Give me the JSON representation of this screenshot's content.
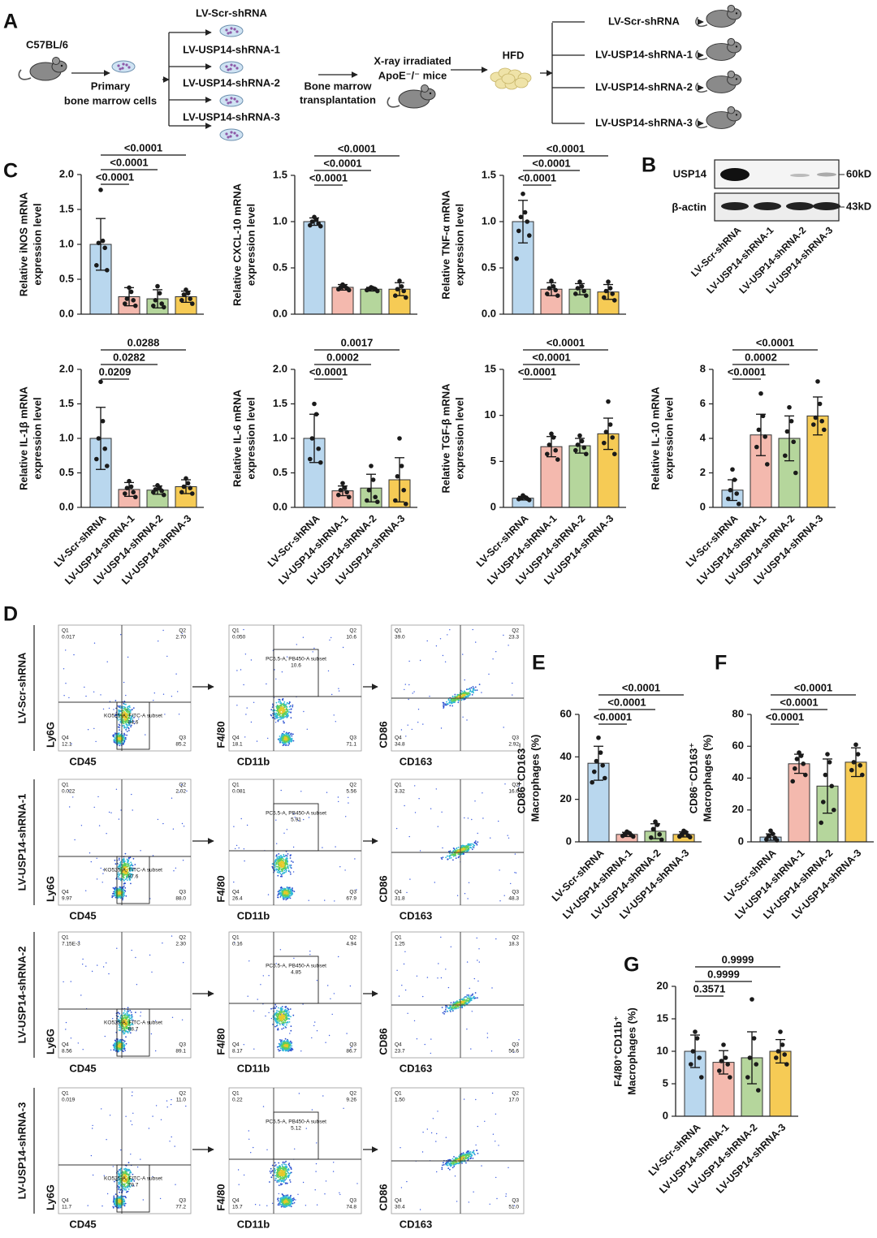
{
  "panel_labels": [
    "A",
    "B",
    "C",
    "D",
    "E",
    "F",
    "G"
  ],
  "schematic": {
    "strain": "C57BL/6",
    "cells": [
      "Primary",
      "bone marrow cells"
    ],
    "vectors": [
      "LV-Scr-shRNA",
      "LV-USP14-shRNA-1",
      "LV-USP14-shRNA-2",
      "LV-USP14-shRNA-3"
    ],
    "transplant": [
      "Bone marrow",
      "transplantation"
    ],
    "recipient": [
      "X-ray irradiated",
      "ApoE⁻/⁻ mice"
    ],
    "diet": "HFD",
    "groups": [
      "LV-Scr-shRNA",
      "LV-USP14-shRNA-1",
      "LV-USP14-shRNA-2",
      "LV-USP14-shRNA-3"
    ]
  },
  "blot": {
    "rows": [
      "USP14",
      "β-actin"
    ],
    "sizes": [
      "60kD",
      "43kD"
    ],
    "lanes": [
      "LV-Scr-shRNA",
      "LV-USP14-shRNA-1",
      "LV-USP14-shRNA-2",
      "LV-USP14-shRNA-3"
    ]
  },
  "flow": {
    "rows": [
      {
        "label": "LV-Scr-shRNA",
        "plots": [
          {
            "ylabel": "Ly6G",
            "xlabel": "CD45",
            "quadrants": [
              [
                "Q1",
                "0.017"
              ],
              [
                "Q2",
                "2.70"
              ],
              [
                "Q4",
                "12.1"
              ],
              [
                "Q3",
                "85.2"
              ]
            ],
            "gate": [
              "KO525-A, FITC-A subset",
              "84.6"
            ]
          },
          {
            "ylabel": "F4/80",
            "xlabel": "CD11b",
            "quadrants": [
              [
                "Q1",
                "0.050"
              ],
              [
                "Q2",
                "10.6"
              ],
              [
                "Q4",
                "18.1"
              ],
              [
                "Q3",
                "71.1"
              ]
            ],
            "gate": [
              "PC5.5-A, PB450-A subset",
              "10.6"
            ]
          },
          {
            "ylabel": "CD86",
            "xlabel": "CD163",
            "quadrants": [
              [
                "Q1",
                "39.0"
              ],
              [
                "Q2",
                "23.3"
              ],
              [
                "Q4",
                "34.8"
              ],
              [
                "Q3",
                "2.92"
              ]
            ]
          }
        ]
      },
      {
        "label": "LV-USP14-shRNA-1",
        "plots": [
          {
            "ylabel": "Ly6G",
            "xlabel": "CD45",
            "quadrants": [
              [
                "Q1",
                "0.022"
              ],
              [
                "Q2",
                "2.02"
              ],
              [
                "Q4",
                "9.97"
              ],
              [
                "Q3",
                "88.0"
              ]
            ],
            "gate": [
              "KO525-A, FITC-A subset",
              "87.6"
            ]
          },
          {
            "ylabel": "F4/80",
            "xlabel": "CD11b",
            "quadrants": [
              [
                "Q1",
                "0.081"
              ],
              [
                "Q2",
                "5.56"
              ],
              [
                "Q4",
                "26.4"
              ],
              [
                "Q3",
                "67.9"
              ]
            ],
            "gate": [
              "PC5.5-A, PB450-A subset",
              "5.91"
            ]
          },
          {
            "ylabel": "CD86",
            "xlabel": "CD163",
            "quadrants": [
              [
                "Q1",
                "3.32"
              ],
              [
                "Q2",
                "16.6"
              ],
              [
                "Q4",
                "31.8"
              ],
              [
                "Q3",
                "48.3"
              ]
            ]
          }
        ]
      },
      {
        "label": "LV-USP14-shRNA-2",
        "plots": [
          {
            "ylabel": "Ly6G",
            "xlabel": "CD45",
            "quadrants": [
              [
                "Q1",
                "7.15E-3"
              ],
              [
                "Q2",
                "2.30"
              ],
              [
                "Q4",
                "8.56"
              ],
              [
                "Q3",
                "89.1"
              ]
            ],
            "gate": [
              "KO525-A, FITC-A subset",
              "88.7"
            ]
          },
          {
            "ylabel": "F4/80",
            "xlabel": "CD11b",
            "quadrants": [
              [
                "Q1",
                "0.16"
              ],
              [
                "Q2",
                "4.94"
              ],
              [
                "Q4",
                "8.17"
              ],
              [
                "Q3",
                "86.7"
              ]
            ],
            "gate": [
              "PC5.5-A, PB450-A subset",
              "4.85"
            ]
          },
          {
            "ylabel": "CD86",
            "xlabel": "CD163",
            "quadrants": [
              [
                "Q1",
                "1.25"
              ],
              [
                "Q2",
                "18.3"
              ],
              [
                "Q4",
                "23.7"
              ],
              [
                "Q3",
                "56.6"
              ]
            ]
          }
        ]
      },
      {
        "label": "LV-USP14-shRNA-3",
        "plots": [
          {
            "ylabel": "Ly6G",
            "xlabel": "CD45",
            "quadrants": [
              [
                "Q1",
                "0.019"
              ],
              [
                "Q2",
                "11.0"
              ],
              [
                "Q4",
                "11.7"
              ],
              [
                "Q3",
                "77.2"
              ]
            ],
            "gate": [
              "KO525-A, FITC-A subset",
              "79.7"
            ]
          },
          {
            "ylabel": "F4/80",
            "xlabel": "CD11b",
            "quadrants": [
              [
                "Q1",
                "0.22"
              ],
              [
                "Q2",
                "9.26"
              ],
              [
                "Q4",
                "15.7"
              ],
              [
                "Q3",
                "74.8"
              ]
            ],
            "gate": [
              "PC5.5-A, PB450-A subset",
              "5.12"
            ]
          },
          {
            "ylabel": "CD86",
            "xlabel": "CD163",
            "quadrants": [
              [
                "Q1",
                "1.50"
              ],
              [
                "Q2",
                "17.0"
              ],
              [
                "Q4",
                "30.4"
              ],
              [
                "Q3",
                "51.0"
              ]
            ]
          }
        ]
      }
    ]
  },
  "chart_data": [
    {
      "type": "bar",
      "ylabel": [
        "Relative iNOS mRNA",
        "expression level"
      ],
      "categories": [
        null,
        null,
        null,
        null
      ],
      "values": [
        1.0,
        0.25,
        0.22,
        0.25
      ],
      "error": [
        0.37,
        0.13,
        0.13,
        0.08
      ],
      "points": [
        [
          1.78,
          1.05,
          1.02,
          0.95,
          0.7,
          0.63
        ],
        [
          0.38,
          0.32,
          0.22,
          0.2,
          0.15,
          0.12
        ],
        [
          0.4,
          0.3,
          0.2,
          0.15,
          0.12,
          0.1
        ],
        [
          0.35,
          0.3,
          0.28,
          0.22,
          0.2,
          0.15
        ]
      ],
      "colors": [
        "#b9d7ee",
        "#f4b9ae",
        "#b5d69c",
        "#f6cb55"
      ],
      "ylim": [
        0,
        2
      ],
      "yticks": [
        {
          "value": 0,
          "label": "0.0"
        },
        0.5,
        {
          "value": 1,
          "label": "1.0"
        },
        1.5,
        {
          "value": 2,
          "label": "2.0"
        }
      ],
      "comparisons": [
        "<0.0001",
        "<0.0001",
        "<0.0001"
      ]
    },
    {
      "type": "bar",
      "ylabel": [
        "Relative CXCL-10 mRNA",
        "expression level"
      ],
      "categories": [
        null,
        null,
        null,
        null
      ],
      "values": [
        1.0,
        0.29,
        0.27,
        0.27
      ],
      "error": [
        0.04,
        0.03,
        0.02,
        0.07
      ],
      "points": [
        [
          1.05,
          1.02,
          1.0,
          0.98,
          0.96,
          0.95
        ],
        [
          0.32,
          0.3,
          0.29,
          0.28,
          0.27,
          0.26
        ],
        [
          0.29,
          0.28,
          0.27,
          0.27,
          0.26,
          0.25
        ],
        [
          0.36,
          0.3,
          0.27,
          0.25,
          0.2,
          0.18
        ]
      ],
      "colors": [
        "#b9d7ee",
        "#f4b9ae",
        "#b5d69c",
        "#f6cb55"
      ],
      "ylim": [
        0,
        1.5
      ],
      "yticks": [
        {
          "value": 0,
          "label": "0.0"
        },
        0.5,
        {
          "value": 1,
          "label": "1.0"
        },
        1.5
      ],
      "comparisons": [
        "<0.0001",
        "<0.0001",
        "<0.0001"
      ]
    },
    {
      "type": "bar",
      "ylabel": [
        "Relative TNF-α mRNA",
        "expression level"
      ],
      "categories": [
        null,
        null,
        null,
        null
      ],
      "values": [
        1.0,
        0.27,
        0.27,
        0.24
      ],
      "error": [
        0.23,
        0.07,
        0.06,
        0.08
      ],
      "points": [
        [
          1.3,
          1.1,
          1.05,
          1.0,
          0.9,
          0.85,
          0.6
        ],
        [
          0.36,
          0.3,
          0.28,
          0.26,
          0.22,
          0.2
        ],
        [
          0.35,
          0.3,
          0.28,
          0.25,
          0.22,
          0.2
        ],
        [
          0.35,
          0.28,
          0.25,
          0.22,
          0.18,
          0.15
        ]
      ],
      "colors": [
        "#b9d7ee",
        "#f4b9ae",
        "#b5d69c",
        "#f6cb55"
      ],
      "ylim": [
        0,
        1.5
      ],
      "yticks": [
        {
          "value": 0,
          "label": "0.0"
        },
        0.5,
        {
          "value": 1,
          "label": "1.0"
        },
        1.5
      ],
      "comparisons": [
        "<0.0001",
        "<0.0001",
        "<0.0001"
      ]
    },
    {
      "type": "bar",
      "ylabel": [
        "Relative IL-1β mRNA",
        "expression level"
      ],
      "categories": [
        "LV-Scr-shRNA",
        "LV-USP14-shRNA-1",
        "LV-USP14-shRNA-2",
        "LV-USP14-shRNA-3"
      ],
      "values": [
        1.0,
        0.26,
        0.25,
        0.3
      ],
      "error": [
        0.45,
        0.1,
        0.06,
        0.1
      ],
      "points": [
        [
          1.82,
          1.25,
          1.0,
          0.85,
          0.7,
          0.6
        ],
        [
          0.38,
          0.3,
          0.28,
          0.22,
          0.2,
          0.15
        ],
        [
          0.32,
          0.28,
          0.26,
          0.24,
          0.22,
          0.18
        ],
        [
          0.42,
          0.35,
          0.3,
          0.28,
          0.22,
          0.2
        ]
      ],
      "colors": [
        "#b9d7ee",
        "#f4b9ae",
        "#b5d69c",
        "#f6cb55"
      ],
      "ylim": [
        0,
        2
      ],
      "yticks": [
        {
          "value": 0,
          "label": "0.0"
        },
        0.5,
        {
          "value": 1,
          "label": "1.0"
        },
        1.5,
        {
          "value": 2,
          "label": "2.0"
        }
      ],
      "comparisons": [
        "0.0209",
        "0.0282",
        "0.0288"
      ]
    },
    {
      "type": "bar",
      "ylabel": [
        "Relative IL-6 mRNA",
        "expression level"
      ],
      "categories": [
        "LV-Scr-shRNA",
        "LV-USP14-shRNA-1",
        "LV-USP14-shRNA-2",
        "LV-USP14-shRNA-3"
      ],
      "values": [
        1.0,
        0.24,
        0.28,
        0.4
      ],
      "error": [
        0.35,
        0.07,
        0.2,
        0.32
      ],
      "points": [
        [
          1.5,
          1.35,
          1.0,
          0.85,
          0.7,
          0.65
        ],
        [
          0.35,
          0.28,
          0.25,
          0.22,
          0.18,
          0.15
        ],
        [
          0.6,
          0.4,
          0.25,
          0.15,
          0.1,
          0.08
        ],
        [
          1.0,
          0.6,
          0.45,
          0.25,
          0.1,
          0.05
        ]
      ],
      "colors": [
        "#b9d7ee",
        "#f4b9ae",
        "#b5d69c",
        "#f6cb55"
      ],
      "ylim": [
        0,
        2
      ],
      "yticks": [
        {
          "value": 0,
          "label": "0.0"
        },
        0.5,
        {
          "value": 1,
          "label": "1.0"
        },
        1.5,
        {
          "value": 2,
          "label": "2.0"
        }
      ],
      "comparisons": [
        "<0.0001",
        "0.0002",
        "0.0017"
      ]
    },
    {
      "type": "bar",
      "ylabel": [
        "Relative TGF-β mRNA",
        "expression level"
      ],
      "categories": [
        "LV-Scr-shRNA",
        "LV-USP14-shRNA-1",
        "LV-USP14-shRNA-2",
        "LV-USP14-shRNA-3"
      ],
      "values": [
        1.0,
        6.6,
        6.7,
        8.0
      ],
      "error": [
        0.2,
        1.1,
        0.8,
        1.7
      ],
      "points": [
        [
          1.3,
          1.1,
          1.0,
          0.95,
          0.9,
          0.8
        ],
        [
          8.0,
          7.6,
          6.8,
          6.2,
          5.8,
          5.2
        ],
        [
          7.8,
          7.2,
          6.8,
          6.5,
          6.2,
          5.8
        ],
        [
          11.5,
          9.0,
          8.2,
          7.6,
          7.0,
          5.8
        ]
      ],
      "colors": [
        "#b9d7ee",
        "#f4b9ae",
        "#b5d69c",
        "#f6cb55"
      ],
      "ylim": [
        0,
        15
      ],
      "yticks": [
        0,
        5,
        10,
        15
      ],
      "comparisons": [
        "<0.0001",
        "<0.0001",
        "<0.0001"
      ]
    },
    {
      "type": "bar",
      "ylabel": [
        "Relative IL-10 mRNA",
        "expression level"
      ],
      "categories": [
        "LV-Scr-shRNA",
        "LV-USP14-shRNA-1",
        "LV-USP14-shRNA-2",
        "LV-USP14-shRNA-3"
      ],
      "values": [
        1.0,
        4.2,
        4.0,
        5.3
      ],
      "error": [
        0.6,
        1.2,
        1.3,
        1.1
      ],
      "points": [
        [
          2.2,
          1.6,
          1.0,
          0.8,
          0.5,
          0.2
        ],
        [
          6.6,
          5.3,
          4.5,
          4.1,
          3.5,
          2.5
        ],
        [
          5.8,
          5.0,
          4.4,
          3.8,
          3.0,
          2.0
        ],
        [
          7.3,
          6.0,
          5.2,
          5.0,
          4.8,
          4.5
        ]
      ],
      "colors": [
        "#b9d7ee",
        "#f4b9ae",
        "#b5d69c",
        "#f6cb55"
      ],
      "ylim": [
        0,
        8
      ],
      "yticks": [
        0,
        2,
        4,
        6,
        8
      ],
      "comparisons": [
        "<0.0001",
        "0.0002",
        "<0.0001"
      ]
    },
    {
      "type": "bar",
      "ylabel": [
        "CD86⁺CD163⁻",
        "Macrophages (%)"
      ],
      "categories": [
        "LV-Scr-shRNA",
        "LV-USP14-shRNA-1",
        "LV-USP14-shRNA-2",
        "LV-USP14-shRNA-3"
      ],
      "values": [
        37,
        3.5,
        5,
        3.5
      ],
      "error": [
        8,
        1,
        3.5,
        1.2
      ],
      "points": [
        [
          49,
          42,
          38,
          36,
          33,
          30,
          28
        ],
        [
          4.8,
          4.2,
          3.6,
          3.2,
          2.8,
          2.5
        ],
        [
          9.5,
          8.0,
          6.0,
          3.5,
          2.0,
          1.0
        ],
        [
          5.2,
          4.5,
          3.5,
          3.0,
          2.5,
          2.2
        ]
      ],
      "colors": [
        "#b9d7ee",
        "#f4b9ae",
        "#b5d69c",
        "#f6cb55"
      ],
      "ylim": [
        0,
        60
      ],
      "yticks": [
        0,
        20,
        40,
        60
      ],
      "comparisons": [
        "<0.0001",
        "<0.0001",
        "<0.0001"
      ]
    },
    {
      "type": "bar",
      "ylabel": [
        "CD86⁻CD163⁺",
        "Macrophages (%)"
      ],
      "categories": [
        "LV-Scr-shRNA",
        "LV-USP14-shRNA-1",
        "LV-USP14-shRNA-2",
        "LV-USP14-shRNA-3"
      ],
      "values": [
        3,
        49,
        35,
        50
      ],
      "error": [
        2,
        6,
        17,
        9
      ],
      "points": [
        [
          7,
          5,
          3.5,
          2.5,
          1.5,
          1
        ],
        [
          56,
          54,
          52,
          49,
          46,
          42,
          38
        ],
        [
          55,
          50,
          42,
          35,
          25,
          20,
          12
        ],
        [
          61,
          55,
          50,
          48,
          45,
          42
        ]
      ],
      "colors": [
        "#b9d7ee",
        "#f4b9ae",
        "#b5d69c",
        "#f6cb55"
      ],
      "ylim": [
        0,
        80
      ],
      "yticks": [
        0,
        20,
        40,
        60,
        80
      ],
      "comparisons": [
        "<0.0001",
        "<0.0001",
        "<0.0001"
      ]
    },
    {
      "type": "bar",
      "ylabel": [
        "F4/80⁺CD11b⁺",
        "Macrophages (%)"
      ],
      "categories": [
        "LV-Scr-shRNA",
        "LV-USP14-shRNA-1",
        "LV-USP14-shRNA-2",
        "LV-USP14-shRNA-3"
      ],
      "values": [
        10,
        8.3,
        9,
        10
      ],
      "error": [
        2.5,
        1.8,
        4,
        1.8
      ],
      "points": [
        [
          13,
          12,
          10,
          9,
          8,
          6
        ],
        [
          11,
          9,
          8.5,
          8,
          7,
          6
        ],
        [
          18,
          12,
          9,
          8,
          6,
          4
        ],
        [
          13,
          11,
          10,
          9.5,
          9,
          8
        ]
      ],
      "colors": [
        "#b9d7ee",
        "#f4b9ae",
        "#b5d69c",
        "#f6cb55"
      ],
      "ylim": [
        0,
        20
      ],
      "yticks": [
        0,
        5,
        10,
        15,
        20
      ],
      "comparisons": [
        "0.3571",
        "0.9999",
        "0.9999"
      ]
    }
  ]
}
